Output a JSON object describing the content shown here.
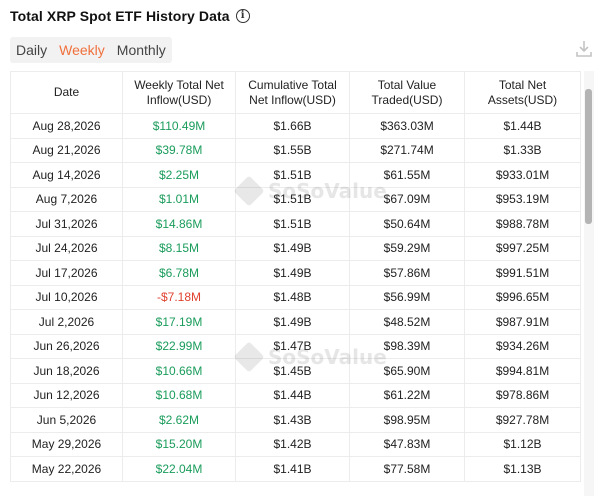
{
  "header": {
    "title": "Total XRP Spot ETF History Data"
  },
  "tabs": [
    {
      "label": "Daily",
      "active": false
    },
    {
      "label": "Weekly",
      "active": true
    },
    {
      "label": "Monthly",
      "active": false
    }
  ],
  "colors": {
    "accent": "#f0703c",
    "positive": "#1a9c5b",
    "negative": "#e0412f"
  },
  "icons": {
    "info": "info-circle-icon",
    "download": "download-icon",
    "watermark": "sosovalue-logo"
  },
  "watermark": {
    "text": "SoSoValue"
  },
  "table": {
    "columns": [
      "Date",
      "Weekly Total Net Inflow(USD)",
      "Cumulative Total Net Inflow(USD)",
      "Total Value Traded(USD)",
      "Total Net Assets(USD)"
    ],
    "rows": [
      {
        "date": "Aug 28,2026",
        "inflow": "$110.49M",
        "sign": "pos",
        "cumulative": "$1.66B",
        "traded": "$363.03M",
        "assets": "$1.44B"
      },
      {
        "date": "Aug 21,2026",
        "inflow": "$39.78M",
        "sign": "pos",
        "cumulative": "$1.55B",
        "traded": "$271.74M",
        "assets": "$1.33B"
      },
      {
        "date": "Aug 14,2026",
        "inflow": "$2.25M",
        "sign": "pos",
        "cumulative": "$1.51B",
        "traded": "$61.55M",
        "assets": "$933.01M"
      },
      {
        "date": "Aug 7,2026",
        "inflow": "$1.01M",
        "sign": "pos",
        "cumulative": "$1.51B",
        "traded": "$67.09M",
        "assets": "$953.19M"
      },
      {
        "date": "Jul 31,2026",
        "inflow": "$14.86M",
        "sign": "pos",
        "cumulative": "$1.51B",
        "traded": "$50.64M",
        "assets": "$988.78M"
      },
      {
        "date": "Jul 24,2026",
        "inflow": "$8.15M",
        "sign": "pos",
        "cumulative": "$1.49B",
        "traded": "$59.29M",
        "assets": "$997.25M"
      },
      {
        "date": "Jul 17,2026",
        "inflow": "$6.78M",
        "sign": "pos",
        "cumulative": "$1.49B",
        "traded": "$57.86M",
        "assets": "$991.51M"
      },
      {
        "date": "Jul 10,2026",
        "inflow": "-$7.18M",
        "sign": "neg",
        "cumulative": "$1.48B",
        "traded": "$56.99M",
        "assets": "$996.65M"
      },
      {
        "date": "Jul 2,2026",
        "inflow": "$17.19M",
        "sign": "pos",
        "cumulative": "$1.49B",
        "traded": "$48.52M",
        "assets": "$987.91M"
      },
      {
        "date": "Jun 26,2026",
        "inflow": "$22.99M",
        "sign": "pos",
        "cumulative": "$1.47B",
        "traded": "$98.39M",
        "assets": "$934.26M"
      },
      {
        "date": "Jun 18,2026",
        "inflow": "$10.66M",
        "sign": "pos",
        "cumulative": "$1.45B",
        "traded": "$65.90M",
        "assets": "$994.81M"
      },
      {
        "date": "Jun 12,2026",
        "inflow": "$10.68M",
        "sign": "pos",
        "cumulative": "$1.44B",
        "traded": "$61.22M",
        "assets": "$978.86M"
      },
      {
        "date": "Jun 5,2026",
        "inflow": "$2.62M",
        "sign": "pos",
        "cumulative": "$1.43B",
        "traded": "$98.95M",
        "assets": "$927.78M"
      },
      {
        "date": "May 29,2026",
        "inflow": "$15.20M",
        "sign": "pos",
        "cumulative": "$1.42B",
        "traded": "$47.83M",
        "assets": "$1.12B"
      },
      {
        "date": "May 22,2026",
        "inflow": "$22.04M",
        "sign": "pos",
        "cumulative": "$1.41B",
        "traded": "$77.58M",
        "assets": "$1.13B"
      }
    ]
  }
}
